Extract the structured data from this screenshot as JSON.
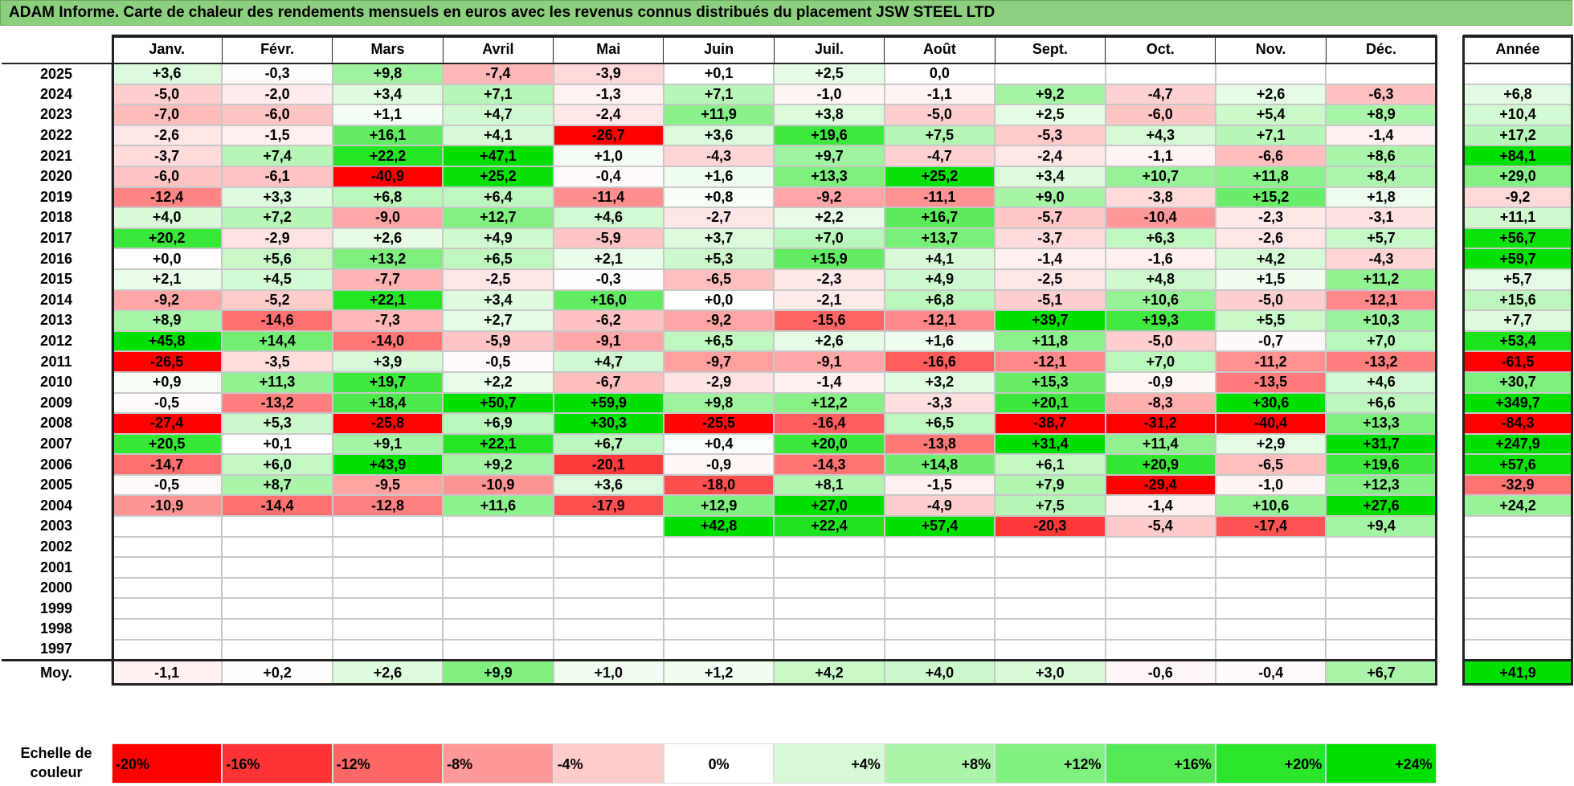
{
  "title": "ADAM Informe. Carte de chaleur des rendements mensuels en euros avec les revenus connus distribués du placement JSW STEEL LTD",
  "chart_data": {
    "type": "heatmap",
    "columns": [
      "Janv.",
      "Févr.",
      "Mars",
      "Avril",
      "Mai",
      "Juin",
      "Juil.",
      "Août",
      "Sept.",
      "Oct.",
      "Nov.",
      "Déc."
    ],
    "annual_header": "Année",
    "rows": [
      {
        "year": "2025",
        "values": [
          "+3,6",
          "-0,3",
          "+9,8",
          "-7,4",
          "-3,9",
          "+0,1",
          "+2,5",
          "0,0",
          "",
          "",
          "",
          ""
        ],
        "annual": ""
      },
      {
        "year": "2024",
        "values": [
          "-5,0",
          "-2,0",
          "+3,4",
          "+7,1",
          "-1,3",
          "+7,1",
          "-1,0",
          "-1,1",
          "+9,2",
          "-4,7",
          "+2,6",
          "-6,3"
        ],
        "annual": "+6,8"
      },
      {
        "year": "2023",
        "values": [
          "-7,0",
          "-6,0",
          "+1,1",
          "+4,7",
          "-2,4",
          "+11,9",
          "+3,8",
          "-5,0",
          "+2,5",
          "-6,0",
          "+5,4",
          "+8,9"
        ],
        "annual": "+10,4"
      },
      {
        "year": "2022",
        "values": [
          "-2,6",
          "-1,5",
          "+16,1",
          "+4,1",
          "-26,7",
          "+3,6",
          "+19,6",
          "+7,5",
          "-5,3",
          "+4,3",
          "+7,1",
          "-1,4"
        ],
        "annual": "+17,2"
      },
      {
        "year": "2021",
        "values": [
          "-3,7",
          "+7,4",
          "+22,2",
          "+47,1",
          "+1,0",
          "-4,3",
          "+9,7",
          "-4,7",
          "-2,4",
          "-1,1",
          "-6,6",
          "+8,6"
        ],
        "annual": "+84,1"
      },
      {
        "year": "2020",
        "values": [
          "-6,0",
          "-6,1",
          "-40,9",
          "+25,2",
          "-0,4",
          "+1,6",
          "+13,3",
          "+25,2",
          "+3,4",
          "+10,7",
          "+11,8",
          "+8,4"
        ],
        "annual": "+29,0"
      },
      {
        "year": "2019",
        "values": [
          "-12,4",
          "+3,3",
          "+6,8",
          "+6,4",
          "-11,4",
          "+0,8",
          "-9,2",
          "-11,1",
          "+9,0",
          "-3,8",
          "+15,2",
          "+1,8"
        ],
        "annual": "-9,2"
      },
      {
        "year": "2018",
        "values": [
          "+4,0",
          "+7,2",
          "-9,0",
          "+12,7",
          "+4,6",
          "-2,7",
          "+2,2",
          "+16,7",
          "-5,7",
          "-10,4",
          "-2,3",
          "-3,1"
        ],
        "annual": "+11,1"
      },
      {
        "year": "2017",
        "values": [
          "+20,2",
          "-2,9",
          "+2,6",
          "+4,9",
          "-5,9",
          "+3,7",
          "+7,0",
          "+13,7",
          "-3,7",
          "+6,3",
          "-2,6",
          "+5,7"
        ],
        "annual": "+56,7"
      },
      {
        "year": "2016",
        "values": [
          "+0,0",
          "+5,6",
          "+13,2",
          "+6,5",
          "+2,1",
          "+5,3",
          "+15,9",
          "+4,1",
          "-1,4",
          "-1,6",
          "+4,2",
          "-4,3"
        ],
        "annual": "+59,7"
      },
      {
        "year": "2015",
        "values": [
          "+2,1",
          "+4,5",
          "-7,7",
          "-2,5",
          "-0,3",
          "-6,5",
          "-2,3",
          "+4,9",
          "-2,5",
          "+4,8",
          "+1,5",
          "+11,2"
        ],
        "annual": "+5,7"
      },
      {
        "year": "2014",
        "values": [
          "-9,2",
          "-5,2",
          "+22,1",
          "+3,4",
          "+16,0",
          "+0,0",
          "-2,1",
          "+6,8",
          "-5,1",
          "+10,6",
          "-5,0",
          "-12,1"
        ],
        "annual": "+15,6"
      },
      {
        "year": "2013",
        "values": [
          "+8,9",
          "-14,6",
          "-7,3",
          "+2,7",
          "-6,2",
          "-9,2",
          "-15,6",
          "-12,1",
          "+39,7",
          "+19,3",
          "+5,5",
          "+10,3"
        ],
        "annual": "+7,7"
      },
      {
        "year": "2012",
        "values": [
          "+45,8",
          "+14,4",
          "-14,0",
          "-5,9",
          "-9,1",
          "+6,5",
          "+2,6",
          "+1,6",
          "+11,8",
          "-5,0",
          "-0,7",
          "+7,0"
        ],
        "annual": "+53,4"
      },
      {
        "year": "2011",
        "values": [
          "-26,5",
          "-3,5",
          "+3,9",
          "-0,5",
          "+4,7",
          "-9,7",
          "-9,1",
          "-16,6",
          "-12,1",
          "+7,0",
          "-11,2",
          "-13,2"
        ],
        "annual": "-61,5"
      },
      {
        "year": "2010",
        "values": [
          "+0,9",
          "+11,3",
          "+19,7",
          "+2,2",
          "-6,7",
          "-2,9",
          "-1,4",
          "+3,2",
          "+15,3",
          "-0,9",
          "-13,5",
          "+4,6"
        ],
        "annual": "+30,7"
      },
      {
        "year": "2009",
        "values": [
          "-0,5",
          "-13,2",
          "+18,4",
          "+50,7",
          "+59,9",
          "+9,8",
          "+12,2",
          "-3,3",
          "+20,1",
          "-8,3",
          "+30,6",
          "+6,6"
        ],
        "annual": "+349,7"
      },
      {
        "year": "2008",
        "values": [
          "-27,4",
          "+5,3",
          "-25,8",
          "+6,9",
          "+30,3",
          "-25,5",
          "-16,4",
          "+6,5",
          "-38,7",
          "-31,2",
          "-40,4",
          "+13,3"
        ],
        "annual": "-84,3"
      },
      {
        "year": "2007",
        "values": [
          "+20,5",
          "+0,1",
          "+9,1",
          "+22,1",
          "+6,7",
          "+0,4",
          "+20,0",
          "-13,8",
          "+31,4",
          "+11,4",
          "+2,9",
          "+31,7"
        ],
        "annual": "+247,9"
      },
      {
        "year": "2006",
        "values": [
          "-14,7",
          "+6,0",
          "+43,9",
          "+9,2",
          "-20,1",
          "-0,9",
          "-14,3",
          "+14,8",
          "+6,1",
          "+20,9",
          "-6,5",
          "+19,6"
        ],
        "annual": "+57,6"
      },
      {
        "year": "2005",
        "values": [
          "-0,5",
          "+8,7",
          "-9,5",
          "-10,9",
          "+3,6",
          "-18,0",
          "+8,1",
          "-1,5",
          "+7,9",
          "-29,4",
          "-1,0",
          "+12,3"
        ],
        "annual": "-32,9"
      },
      {
        "year": "2004",
        "values": [
          "-10,9",
          "-14,4",
          "-12,8",
          "+11,6",
          "-17,9",
          "+12,9",
          "+27,0",
          "-4,9",
          "+7,5",
          "-1,4",
          "+10,6",
          "+27,6"
        ],
        "annual": "+24,2"
      },
      {
        "year": "2003",
        "values": [
          "",
          "",
          "",
          "",
          "",
          "+42,8",
          "+22,4",
          "+57,4",
          "-20,3",
          "-5,4",
          "-17,4",
          "+9,4"
        ],
        "annual": ""
      },
      {
        "year": "2002",
        "values": [
          "",
          "",
          "",
          "",
          "",
          "",
          "",
          "",
          "",
          "",
          "",
          ""
        ],
        "annual": ""
      },
      {
        "year": "2001",
        "values": [
          "",
          "",
          "",
          "",
          "",
          "",
          "",
          "",
          "",
          "",
          "",
          ""
        ],
        "annual": ""
      },
      {
        "year": "2000",
        "values": [
          "",
          "",
          "",
          "",
          "",
          "",
          "",
          "",
          "",
          "",
          "",
          ""
        ],
        "annual": ""
      },
      {
        "year": "1999",
        "values": [
          "",
          "",
          "",
          "",
          "",
          "",
          "",
          "",
          "",
          "",
          "",
          ""
        ],
        "annual": ""
      },
      {
        "year": "1998",
        "values": [
          "",
          "",
          "",
          "",
          "",
          "",
          "",
          "",
          "",
          "",
          "",
          ""
        ],
        "annual": ""
      },
      {
        "year": "1997",
        "values": [
          "",
          "",
          "",
          "",
          "",
          "",
          "",
          "",
          "",
          "",
          "",
          ""
        ],
        "annual": ""
      }
    ],
    "average": {
      "label": "Moy.",
      "values": [
        "-1,1",
        "+0,2",
        "+2,6",
        "+9,9",
        "+1,0",
        "+1,2",
        "+4,2",
        "+4,0",
        "+3,0",
        "-0,6",
        "-0,4",
        "+6,7"
      ],
      "annual": "+41,9"
    },
    "scale": {
      "label": "Echelle de couleur",
      "items": [
        {
          "label": "-20%",
          "value": -20,
          "align": "left"
        },
        {
          "label": "-16%",
          "value": -16,
          "align": "left"
        },
        {
          "label": "-12%",
          "value": -12,
          "align": "left"
        },
        {
          "label": "-8%",
          "value": -8,
          "align": "left"
        },
        {
          "label": "-4%",
          "value": -4,
          "align": "left"
        },
        {
          "label": "0%",
          "value": 0,
          "align": "center"
        },
        {
          "label": "+4%",
          "value": 4,
          "align": "right"
        },
        {
          "label": "+8%",
          "value": 8,
          "align": "right"
        },
        {
          "label": "+12%",
          "value": 12,
          "align": "right"
        },
        {
          "label": "+16%",
          "value": 16,
          "align": "right"
        },
        {
          "label": "+20%",
          "value": 20,
          "align": "right"
        },
        {
          "label": "+24%",
          "value": 24,
          "align": "right"
        }
      ]
    },
    "colors": {
      "negative": "#ff0000",
      "neutral": "#ffffff",
      "positive": "#00e000"
    }
  }
}
